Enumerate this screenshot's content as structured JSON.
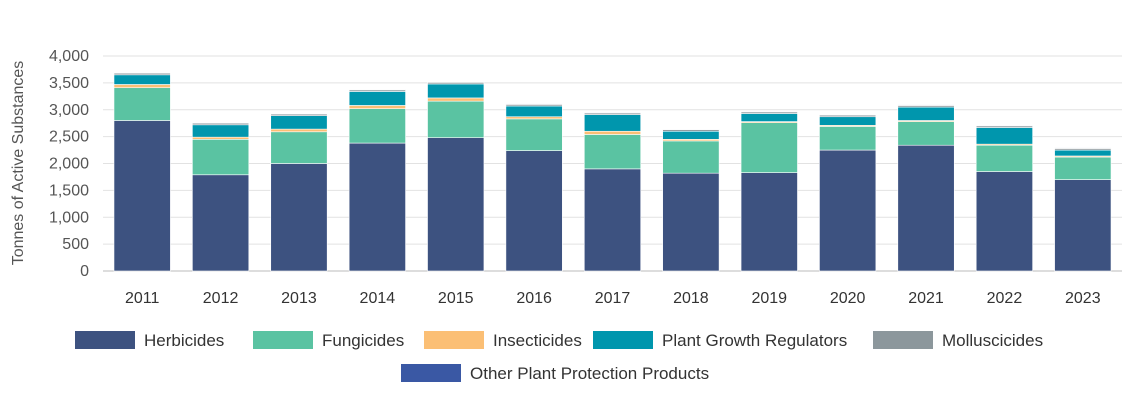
{
  "chart_data": {
    "type": "bar",
    "stacked": true,
    "title": "",
    "xlabel": "",
    "ylabel": "Tonnes of Active Substances",
    "ylim": [
      0,
      4000
    ],
    "yticks": [
      0,
      500,
      1000,
      1500,
      2000,
      2500,
      3000,
      3500,
      4000
    ],
    "ytick_labels": [
      "0",
      "500",
      "1,000",
      "1,500",
      "2,000",
      "2,500",
      "3,000",
      "3,500",
      "4,000"
    ],
    "grid": true,
    "legend_position": "bottom",
    "categories": [
      "2011",
      "2012",
      "2013",
      "2014",
      "2015",
      "2016",
      "2017",
      "2018",
      "2019",
      "2020",
      "2021",
      "2022",
      "2023"
    ],
    "series": [
      {
        "name": "Herbicides",
        "color": "#3d5280",
        "values": [
          2800,
          1790,
          2000,
          2380,
          2480,
          2240,
          1900,
          1820,
          1830,
          2250,
          2340,
          1850,
          1700
        ]
      },
      {
        "name": "Fungicides",
        "color": "#5ac3a2",
        "values": [
          610,
          660,
          590,
          640,
          680,
          590,
          640,
          600,
          930,
          440,
          440,
          490,
          420
        ]
      },
      {
        "name": "Insecticides",
        "color": "#fbbf75",
        "values": [
          60,
          40,
          50,
          60,
          60,
          40,
          60,
          30,
          20,
          20,
          20,
          20,
          20
        ]
      },
      {
        "name": "Plant Growth Regulators",
        "color": "#0096ad",
        "values": [
          180,
          230,
          250,
          260,
          260,
          200,
          310,
          150,
          150,
          160,
          250,
          310,
          110
        ]
      },
      {
        "name": "Molluscicides",
        "color": "#8c979c",
        "values": [
          30,
          30,
          30,
          30,
          30,
          30,
          30,
          30,
          30,
          30,
          30,
          30,
          30
        ]
      },
      {
        "name": "Other Plant Protection Products",
        "color": "#3a58a4",
        "values": [
          10,
          10,
          10,
          10,
          10,
          10,
          10,
          10,
          10,
          10,
          10,
          10,
          10
        ]
      }
    ]
  }
}
